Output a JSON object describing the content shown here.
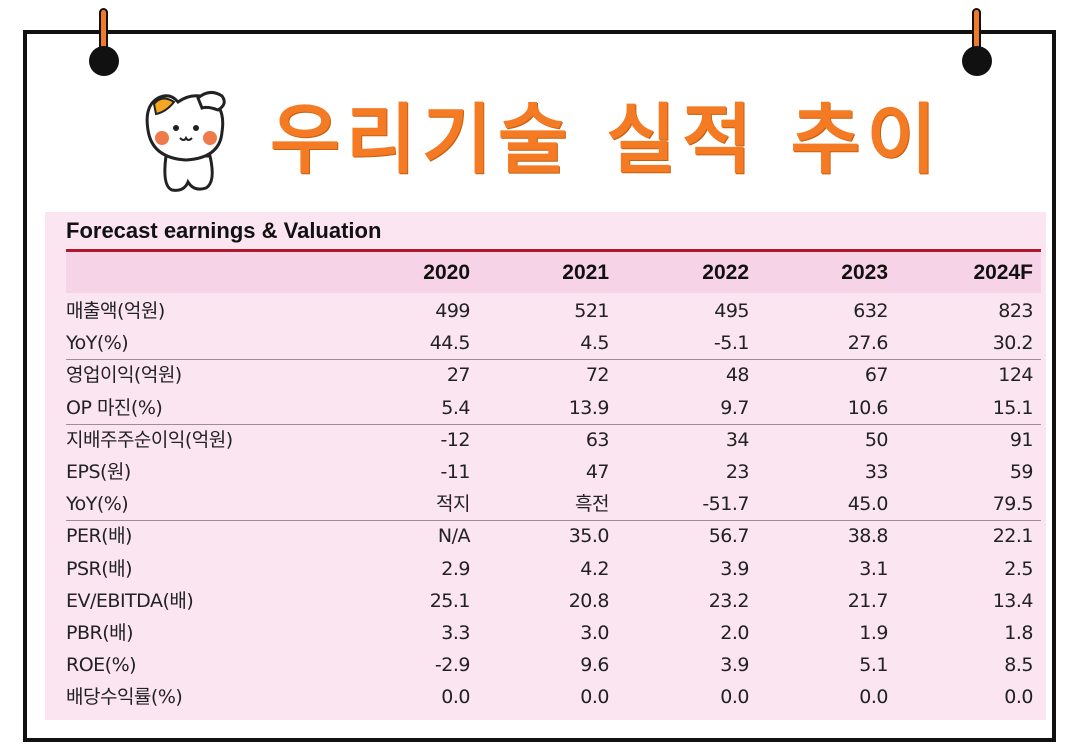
{
  "header": {
    "title": "우리기술 실적 추이"
  },
  "table": {
    "caption": "Forecast earnings & Valuation",
    "columns": [
      "2020",
      "2021",
      "2022",
      "2023",
      "2024F"
    ],
    "rows": [
      {
        "label": "매출액(억원)",
        "values": [
          "499",
          "521",
          "495",
          "632",
          "823"
        ]
      },
      {
        "label": "YoY(%)",
        "values": [
          "44.5",
          "4.5",
          "-5.1",
          "27.6",
          "30.2"
        ]
      },
      {
        "label": "영업이익(억원)",
        "values": [
          "27",
          "72",
          "48",
          "67",
          "124"
        ]
      },
      {
        "label": "OP 마진(%)",
        "values": [
          "5.4",
          "13.9",
          "9.7",
          "10.6",
          "15.1"
        ]
      },
      {
        "label": "지배주주순이익(억원)",
        "values": [
          "-12",
          "63",
          "34",
          "50",
          "91"
        ]
      },
      {
        "label": "EPS(원)",
        "values": [
          "-11",
          "47",
          "23",
          "33",
          "59"
        ]
      },
      {
        "label": "YoY(%)",
        "values": [
          "적지",
          "흑전",
          "-51.7",
          "45.0",
          "79.5"
        ]
      },
      {
        "label": "PER(배)",
        "values": [
          "N/A",
          "35.0",
          "56.7",
          "38.8",
          "22.1"
        ]
      },
      {
        "label": "PSR(배)",
        "values": [
          "2.9",
          "4.2",
          "3.9",
          "3.1",
          "2.5"
        ]
      },
      {
        "label": "EV/EBITDA(배)",
        "values": [
          "25.1",
          "20.8",
          "23.2",
          "21.7",
          "13.4"
        ]
      },
      {
        "label": "PBR(배)",
        "values": [
          "3.3",
          "3.0",
          "2.0",
          "1.9",
          "1.8"
        ]
      },
      {
        "label": "ROE(%)",
        "values": [
          "-2.9",
          "9.6",
          "3.9",
          "5.1",
          "8.5"
        ]
      },
      {
        "label": "배당수익률(%)",
        "values": [
          "0.0",
          "0.0",
          "0.0",
          "0.0",
          "0.0"
        ]
      }
    ]
  },
  "colors": {
    "title": "#f47a23",
    "panel": "#fbe5f1",
    "rule": "#b0182f",
    "header_band": "#f6d3e6"
  },
  "icons": [
    "pushpin-icon",
    "cat-mascot-icon"
  ]
}
